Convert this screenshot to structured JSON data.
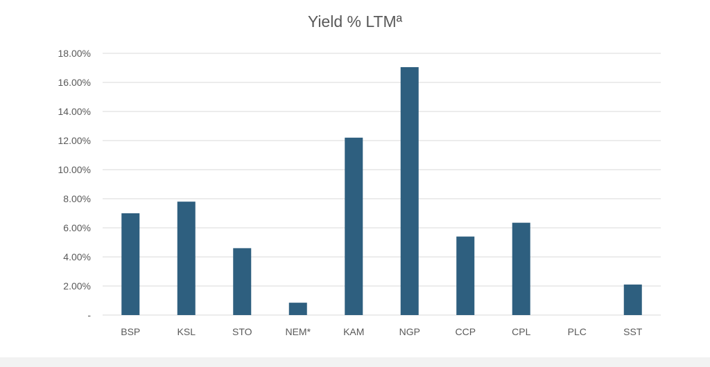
{
  "chart_data": {
    "type": "bar",
    "title": "Yield % LTMª",
    "xlabel": "",
    "ylabel": "",
    "categories": [
      "BSP",
      "KSL",
      "STO",
      "NEM*",
      "KAM",
      "NGP",
      "CCP",
      "CPL",
      "PLC",
      "SST"
    ],
    "values": [
      7.0,
      7.8,
      4.6,
      0.85,
      12.2,
      17.05,
      5.4,
      6.35,
      0,
      2.1
    ],
    "ylim": [
      0,
      18
    ],
    "yticks": [
      0,
      2,
      4,
      6,
      8,
      10,
      12,
      14,
      16,
      18
    ],
    "ytick_labels": [
      "-",
      "2.00%",
      "4.00%",
      "6.00%",
      "8.00%",
      "10.00%",
      "12.00%",
      "14.00%",
      "16.00%",
      "18.00%"
    ],
    "grid": true,
    "legend": "none",
    "bar_color": "#2e5f7f",
    "grid_color": "#d9d9d9"
  }
}
